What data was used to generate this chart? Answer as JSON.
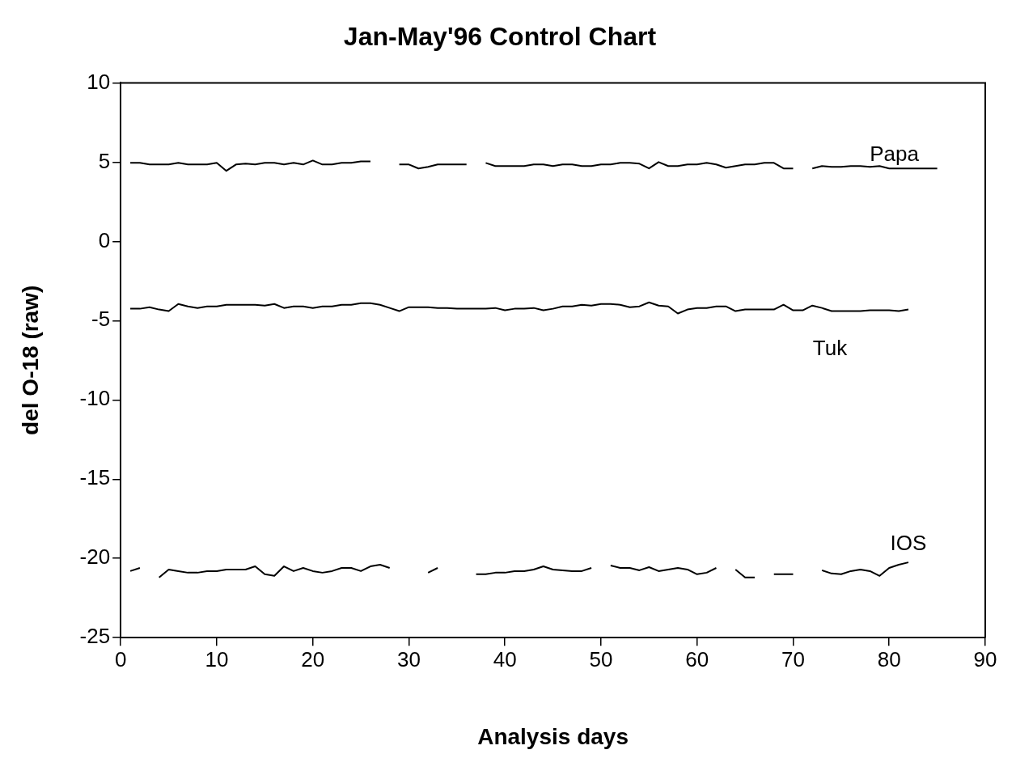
{
  "chart_data": {
    "type": "line",
    "title": "Jan-May'96 Control Chart",
    "xlabel": "Analysis days",
    "ylabel": "del O-18 (raw)",
    "xlim": [
      0,
      90
    ],
    "xticks": [
      0,
      10,
      20,
      30,
      40,
      50,
      60,
      70,
      80,
      90
    ],
    "ylim": [
      -25,
      10
    ],
    "yticks": [
      -25,
      -20,
      -15,
      -10,
      -5,
      0,
      5,
      10
    ],
    "grid": false,
    "legend": false,
    "marker": "none",
    "line_style": "solid",
    "series": [
      {
        "name": "Papa",
        "color": "#000000",
        "x": [
          1,
          2,
          3,
          4,
          5,
          6,
          7,
          8,
          9,
          10,
          11,
          12,
          13,
          14,
          15,
          16,
          17,
          18,
          19,
          20,
          21,
          22,
          23,
          24,
          25,
          26,
          27,
          29,
          30,
          31,
          32,
          33,
          34,
          35,
          36,
          37,
          38,
          39,
          40,
          41,
          42,
          43,
          44,
          45,
          46,
          47,
          48,
          49,
          50,
          51,
          52,
          53,
          54,
          55,
          56,
          57,
          58,
          59,
          60,
          61,
          62,
          63,
          64,
          65,
          66,
          67,
          68,
          69,
          70,
          71,
          72,
          73,
          74,
          75,
          76,
          77,
          78,
          79,
          80,
          81,
          82,
          83,
          84,
          85
        ],
        "values": [
          4.95,
          4.95,
          4.85,
          4.85,
          4.85,
          4.95,
          4.85,
          4.85,
          4.85,
          4.95,
          4.45,
          4.85,
          4.9,
          4.85,
          4.95,
          4.95,
          4.85,
          4.95,
          4.85,
          5.1,
          4.85,
          4.85,
          4.95,
          4.95,
          5.05,
          5.05,
          null,
          4.85,
          4.85,
          4.6,
          4.7,
          4.85,
          4.85,
          4.85,
          4.85,
          null,
          4.95,
          4.75,
          4.75,
          4.75,
          4.75,
          4.85,
          4.85,
          4.75,
          4.85,
          4.85,
          4.75,
          4.75,
          4.85,
          4.85,
          4.95,
          4.95,
          4.9,
          4.6,
          5.0,
          4.75,
          4.75,
          4.85,
          4.85,
          4.95,
          4.85,
          4.65,
          4.75,
          4.85,
          4.85,
          4.95,
          4.95,
          4.6,
          4.6,
          null,
          4.6,
          4.75,
          4.7,
          4.7,
          4.75,
          4.75,
          4.7,
          4.75,
          4.6,
          4.6,
          4.6,
          4.6,
          4.6,
          4.6
        ]
      },
      {
        "name": "Tuk",
        "color": "#000000",
        "x": [
          1,
          2,
          3,
          4,
          5,
          6,
          7,
          8,
          9,
          10,
          11,
          12,
          13,
          14,
          15,
          16,
          17,
          18,
          19,
          20,
          21,
          22,
          23,
          24,
          25,
          26,
          27,
          28,
          29,
          30,
          31,
          32,
          33,
          34,
          35,
          36,
          37,
          38,
          39,
          40,
          41,
          42,
          43,
          44,
          45,
          46,
          47,
          48,
          49,
          50,
          51,
          52,
          53,
          54,
          55,
          56,
          57,
          58,
          59,
          60,
          61,
          62,
          63,
          64,
          65,
          66,
          67,
          68,
          69,
          70,
          71,
          72,
          73,
          74,
          75,
          76,
          77,
          78,
          79,
          80,
          81,
          82
        ],
        "values": [
          -4.25,
          -4.25,
          -4.15,
          -4.3,
          -4.4,
          -3.95,
          -4.1,
          -4.2,
          -4.1,
          -4.1,
          -4.0,
          -4.0,
          -4.0,
          -4.0,
          -4.05,
          -3.95,
          -4.2,
          -4.1,
          -4.1,
          -4.2,
          -4.1,
          -4.1,
          -4.0,
          -4.0,
          -3.9,
          -3.9,
          -4.0,
          -4.2,
          -4.4,
          -4.15,
          -4.15,
          -4.15,
          -4.2,
          -4.2,
          -4.25,
          -4.25,
          -4.25,
          -4.25,
          -4.2,
          -4.35,
          -4.25,
          -4.25,
          -4.2,
          -4.35,
          -4.25,
          -4.1,
          -4.1,
          -4.0,
          -4.05,
          -3.95,
          -3.95,
          -4.0,
          -4.15,
          -4.1,
          -3.85,
          -4.05,
          -4.1,
          -4.55,
          -4.3,
          -4.2,
          -4.2,
          -4.1,
          -4.1,
          -4.4,
          -4.3,
          -4.3,
          -4.3,
          -4.3,
          -4.0,
          -4.35,
          -4.35,
          -4.05,
          -4.2,
          -4.4,
          -4.4,
          -4.4,
          -4.4,
          -4.35,
          -4.35,
          -4.35,
          -4.4,
          -4.3
        ]
      },
      {
        "name": "IOS",
        "color": "#000000",
        "x": [
          1,
          2,
          3,
          4,
          5,
          6,
          7,
          8,
          9,
          10,
          11,
          12,
          13,
          14,
          15,
          16,
          17,
          18,
          19,
          20,
          21,
          22,
          23,
          24,
          25,
          26,
          27,
          28,
          31,
          32,
          33,
          36,
          37,
          38,
          39,
          40,
          41,
          42,
          43,
          44,
          45,
          46,
          47,
          48,
          49,
          50,
          51,
          52,
          53,
          54,
          55,
          56,
          57,
          58,
          59,
          60,
          61,
          62,
          63,
          64,
          65,
          66,
          67,
          68,
          69,
          70,
          71,
          72,
          73,
          74,
          75,
          76,
          77,
          78,
          79,
          80,
          81,
          82
        ],
        "values": [
          -20.8,
          -20.6,
          null,
          -21.2,
          -20.7,
          -20.8,
          -20.9,
          -20.9,
          -20.8,
          -20.8,
          -20.7,
          -20.7,
          -20.7,
          -20.5,
          -21.0,
          -21.1,
          -20.5,
          -20.8,
          -20.6,
          -20.8,
          -20.9,
          -20.8,
          -20.6,
          -20.6,
          -20.8,
          -20.5,
          -20.4,
          -20.6,
          null,
          -20.9,
          -20.6,
          null,
          -21.0,
          -21.0,
          -20.9,
          -20.9,
          -20.8,
          -20.8,
          -20.7,
          -20.5,
          -20.7,
          -20.75,
          -20.8,
          -20.8,
          -20.6,
          null,
          -20.45,
          -20.6,
          -20.6,
          -20.75,
          -20.55,
          -20.8,
          -20.7,
          -20.6,
          -20.7,
          -21.0,
          -20.9,
          -20.6,
          null,
          -20.7,
          -21.2,
          -21.2,
          null,
          -21.0,
          -21.0,
          -21.0,
          null,
          null,
          -20.75,
          -20.95,
          -21.0,
          -20.8,
          -20.7,
          -20.8,
          -21.1,
          -20.6,
          -20.4,
          -20.25
        ]
      }
    ]
  }
}
